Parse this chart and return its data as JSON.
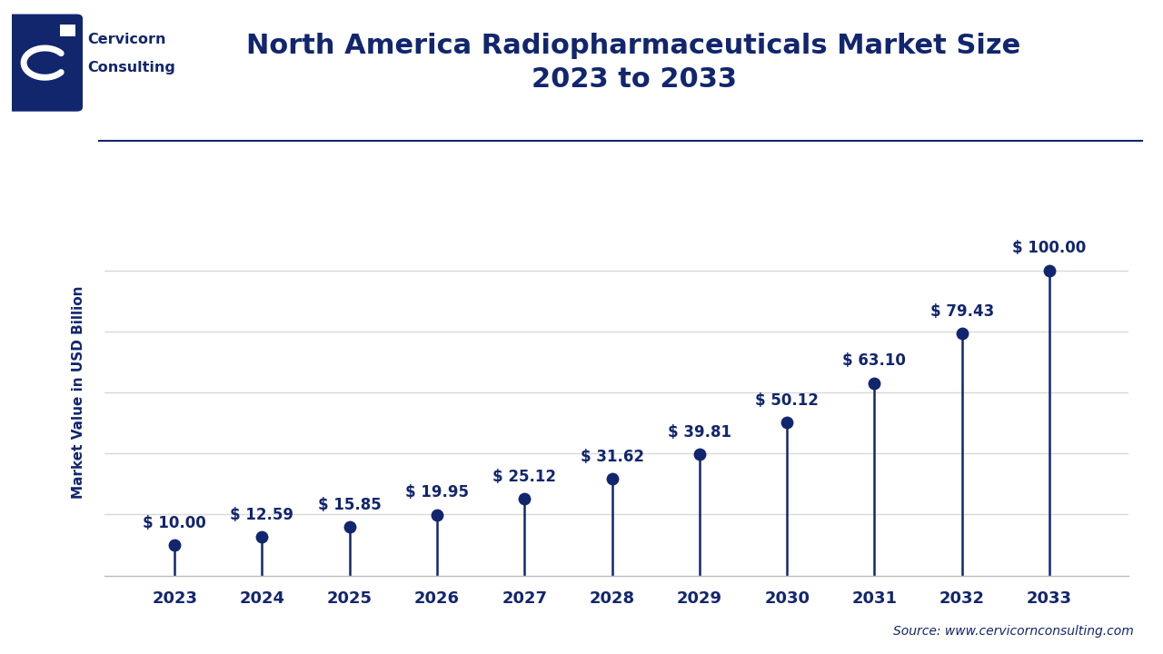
{
  "title": "North America Radiopharmaceuticals Market Size\n2023 to 2033",
  "ylabel": "Market Value in USD Billion",
  "source": "Source: www.cervicornconsulting.com",
  "years": [
    2023,
    2024,
    2025,
    2026,
    2027,
    2028,
    2029,
    2030,
    2031,
    2032,
    2033
  ],
  "values": [
    10.0,
    12.59,
    15.85,
    19.95,
    25.12,
    31.62,
    39.81,
    50.12,
    63.1,
    79.43,
    100.0
  ],
  "labels": [
    "$ 10.00",
    "$ 12.59",
    "$ 15.85",
    "$ 19.95",
    "$ 25.12",
    "$ 31.62",
    "$ 39.81",
    "$ 50.12",
    "$ 63.10",
    "$ 79.43",
    "$ 100.00"
  ],
  "main_color": "#12266e",
  "bg_color": "#ffffff",
  "grid_color": "#d8d8d8",
  "ylim": [
    0,
    120
  ],
  "n_gridlines": 5,
  "gridline_values": [
    20,
    40,
    60,
    80,
    100
  ],
  "title_fontsize": 22,
  "ylabel_fontsize": 11,
  "tick_fontsize": 13,
  "label_fontsize": 12,
  "source_fontsize": 10,
  "logo_text_1": "Cervicorn",
  "logo_text_2": "Consulting"
}
